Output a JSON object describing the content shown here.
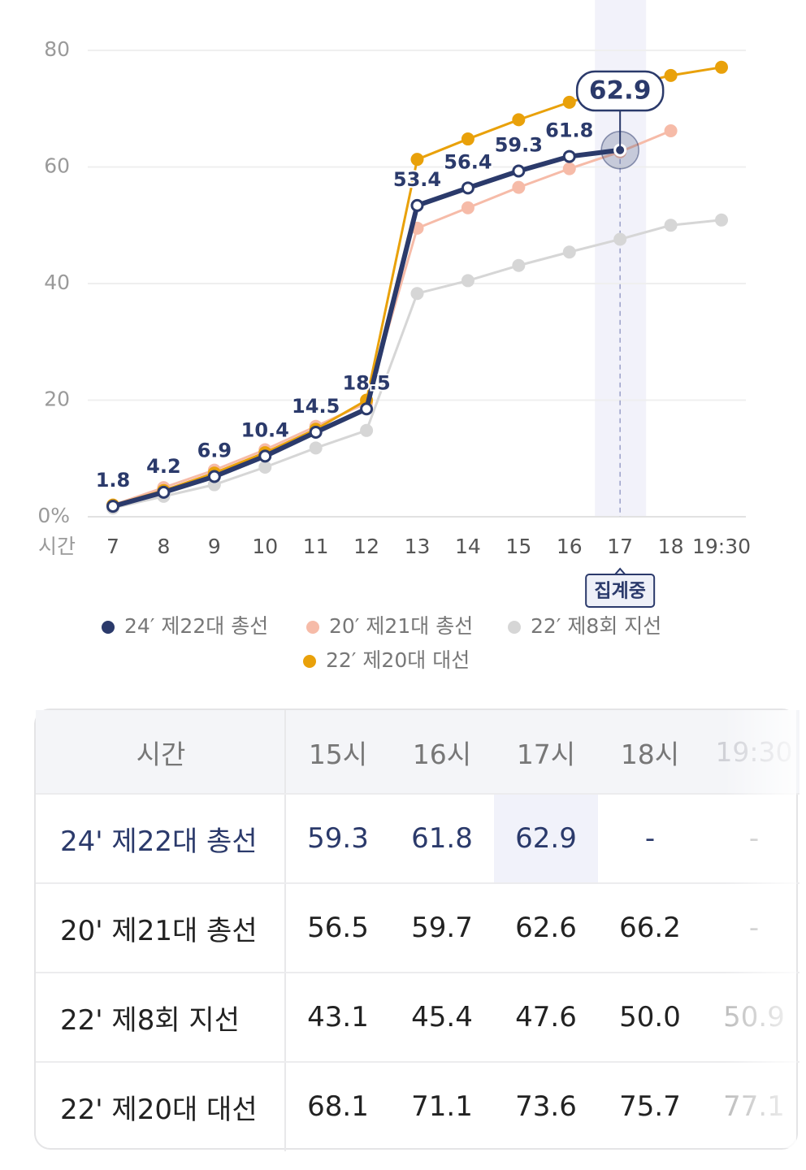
{
  "chart_data": {
    "type": "line",
    "x_label": "시간",
    "categories": [
      "7",
      "8",
      "9",
      "10",
      "11",
      "12",
      "13",
      "14",
      "15",
      "16",
      "17",
      "18",
      "19:30"
    ],
    "series": [
      {
        "name": "24′ 제22대 총선",
        "color": "#2b3a6b",
        "values": [
          1.8,
          4.2,
          6.9,
          10.4,
          14.5,
          18.5,
          53.4,
          56.4,
          59.3,
          61.8,
          62.9,
          null,
          null
        ]
      },
      {
        "name": "20′ 제21대 총선",
        "color": "#f6bba8",
        "values": [
          2,
          5,
          8,
          11.5,
          15.5,
          19.5,
          49.5,
          53,
          56.5,
          59.7,
          62.6,
          66.2,
          null
        ]
      },
      {
        "name": "22′ 제8회 지선",
        "color": "#d6d6d6",
        "values": [
          1.5,
          3.5,
          5.5,
          8.5,
          11.8,
          14.8,
          38.3,
          40.5,
          43.1,
          45.4,
          47.6,
          50.0,
          50.9
        ]
      },
      {
        "name": "22′ 제20대 대선",
        "color": "#e9a10a",
        "values": [
          2,
          4.5,
          7.5,
          11,
          15,
          20,
          61.3,
          64.8,
          68.1,
          71.1,
          73.6,
          75.7,
          77.1
        ]
      }
    ],
    "ylim": [
      0,
      80
    ],
    "yticks": [
      {
        "value": 0,
        "label": "0%"
      },
      20,
      40,
      60,
      80
    ],
    "grid": true,
    "highlight": "17",
    "annotation": "집계중"
  },
  "table": {
    "header": [
      "시간",
      "15시",
      "16시",
      "17시",
      "18시",
      "19:30"
    ],
    "rows": [
      [
        "24' 제22대 총선",
        "59.3",
        "61.8",
        "62.9",
        "-",
        "-"
      ],
      [
        "20' 제21대 총선",
        "56.5",
        "59.7",
        "62.6",
        "66.2",
        "-"
      ],
      [
        "22' 제8회 지선",
        "43.1",
        "45.4",
        "47.6",
        "50.0",
        "50.9"
      ],
      [
        "22' 제20대 대선",
        "68.1",
        "71.1",
        "73.6",
        "75.7",
        "77.1"
      ]
    ]
  }
}
